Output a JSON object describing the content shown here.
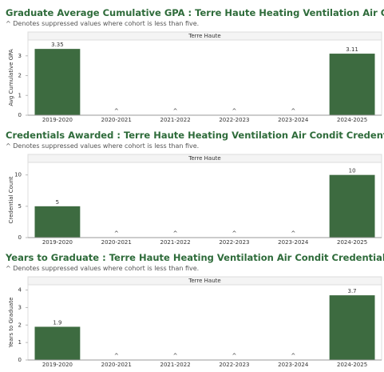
{
  "chart_data": [
    {
      "type": "bar",
      "title": "Graduate Average Cumulative GPA : Terre Haute Heating Ventilation Air Condit Credentials",
      "subtitle": "^ Denotes suppressed values where cohort is less than five.",
      "panel": "Terre Haute",
      "y_label": "Avg Cumulative GPA",
      "categories": [
        "2019-2020",
        "2020-2021",
        "2021-2022",
        "2022-2023",
        "2023-2024",
        "2024-2025"
      ],
      "values": [
        3.35,
        null,
        null,
        null,
        null,
        3.11
      ],
      "value_labels": [
        "3.35",
        "^",
        "^",
        "^",
        "^",
        "3.11"
      ],
      "color": "#3d6b40",
      "ylim": [
        0,
        3.8
      ],
      "yticks": [
        0,
        1,
        2,
        3
      ]
    },
    {
      "type": "bar",
      "title": "Credentials Awarded : Terre Haute Heating Ventilation Air Condit Credentials",
      "subtitle": "^ Denotes suppressed values where cohort is less than five.",
      "panel": "Terre Haute",
      "y_label": "Credential Count",
      "categories": [
        "2019-2020",
        "2020-2021",
        "2021-2022",
        "2022-2023",
        "2023-2024",
        "2024-2025"
      ],
      "values": [
        5,
        null,
        null,
        null,
        null,
        10
      ],
      "value_labels": [
        "5",
        "^",
        "^",
        "^",
        "^",
        "10"
      ],
      "color": "#3d6b40",
      "ylim": [
        0,
        12
      ],
      "yticks": [
        0,
        5,
        10
      ]
    },
    {
      "type": "bar",
      "title": "Years to Graduate : Terre Haute Heating Ventilation Air Condit Credentials",
      "subtitle": "^ Denotes suppressed values where cohort is less than five.",
      "panel": "Terre Haute",
      "y_label": "Years to Graduate",
      "categories": [
        "2019-2020",
        "2020-2021",
        "2021-2022",
        "2022-2023",
        "2023-2024",
        "2024-2025"
      ],
      "values": [
        1.9,
        null,
        null,
        null,
        null,
        3.7
      ],
      "value_labels": [
        "1.9",
        "^",
        "^",
        "^",
        "^",
        "3.7"
      ],
      "color": "#3d6b40",
      "ylim": [
        0,
        4.3
      ],
      "yticks": [
        0,
        1,
        2,
        3,
        4
      ]
    }
  ]
}
